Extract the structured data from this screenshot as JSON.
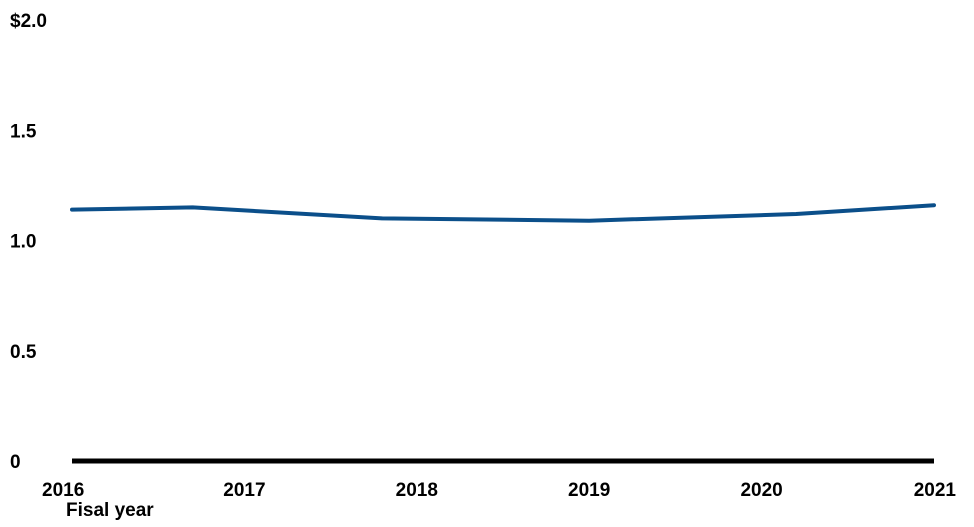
{
  "chart_data": {
    "type": "line",
    "x": [
      2016,
      2016.7,
      2017.8,
      2019.0,
      2020.2,
      2021
    ],
    "series": [
      {
        "name": "",
        "values": [
          1.14,
          1.15,
          1.1,
          1.09,
          1.12,
          1.16
        ],
        "color": "#0b4f8a"
      }
    ],
    "xticks": [
      "2016",
      "2017",
      "2018",
      "2019",
      "2020",
      "2021"
    ],
    "xtick_values": [
      2016,
      2017,
      2018,
      2019,
      2020,
      2021
    ],
    "yticks": [
      "0",
      "0.5",
      "1.0",
      "1.5",
      "$2.0"
    ],
    "ytick_values": [
      0,
      0.5,
      1.0,
      1.5,
      2.0
    ],
    "xlabel": "Fisal year",
    "ylabel": "",
    "xlim": [
      2016,
      2021
    ],
    "ylim": [
      0,
      2.0
    ],
    "grid": false,
    "baseline_color": "#000000"
  }
}
